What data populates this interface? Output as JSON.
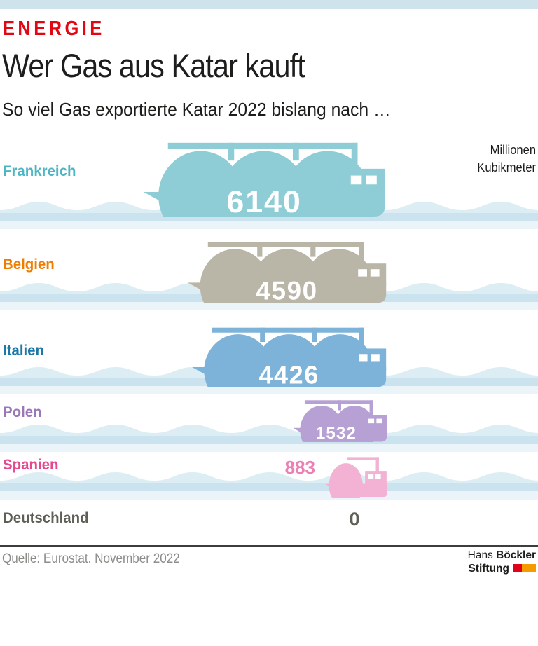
{
  "header": {
    "kicker": "ENERGIE",
    "kicker_color": "#e30613",
    "title": "Wer Gas aus Katar kauft",
    "subtitle": "So viel Gas exportierte Katar 2022 bislang nach …",
    "unit_line1": "Millionen",
    "unit_line2": "Kubikmeter"
  },
  "chart_data": {
    "type": "bar",
    "variant": "pictogram-lng-ships",
    "title": "Wer Gas aus Katar kauft",
    "subtitle": "So viel Gas exportierte Katar 2022 bislang nach …",
    "unit": "Millionen Kubikmeter",
    "categories": [
      "Frankreich",
      "Belgien",
      "Italien",
      "Polen",
      "Spanien",
      "Deutschland"
    ],
    "values": [
      6140,
      4590,
      4426,
      1532,
      883,
      0
    ],
    "source": "Quelle: Eurostat. November 2022"
  },
  "water": {
    "crest": "#dcedf4",
    "band": "#cbe3ee",
    "foam": "#eaf4f9"
  },
  "rows": [
    {
      "country": "Frankreich",
      "value": "6140",
      "label_color": "#4db6c4",
      "ship_color": "#8ecdd5",
      "tanks": 3,
      "value_inside": true
    },
    {
      "country": "Belgien",
      "value": "4590",
      "label_color": "#ef7d00",
      "ship_color": "#b9b6a7",
      "tanks": 3,
      "value_inside": true
    },
    {
      "country": "Italien",
      "value": "4426",
      "label_color": "#1b78a8",
      "ship_color": "#7db2d9",
      "tanks": 3,
      "value_inside": true
    },
    {
      "country": "Polen",
      "value": "1532",
      "label_color": "#9a77b9",
      "ship_color": "#b7a1d4",
      "tanks": 2,
      "value_inside": true
    },
    {
      "country": "Spanien",
      "value": "883",
      "label_color": "#e5488e",
      "ship_color": "#f3b1d3",
      "tanks": 1,
      "value_inside": false,
      "value_color": "#ec7fb4"
    },
    {
      "country": "Deutschland",
      "value": "0",
      "label_color": "#5f5f58",
      "ship_color": null,
      "tanks": 0,
      "value_inside": false,
      "value_color": "#5f5f58"
    }
  ],
  "top_band_color": "#cfe3ec",
  "footer": {
    "source": "Quelle: Eurostat. November 2022",
    "logo_hans": "Hans",
    "logo_boeckler": "Böckler",
    "logo_stiftung": "Stiftung",
    "logo_red": "#e2001a",
    "logo_orange": "#f59b00"
  }
}
